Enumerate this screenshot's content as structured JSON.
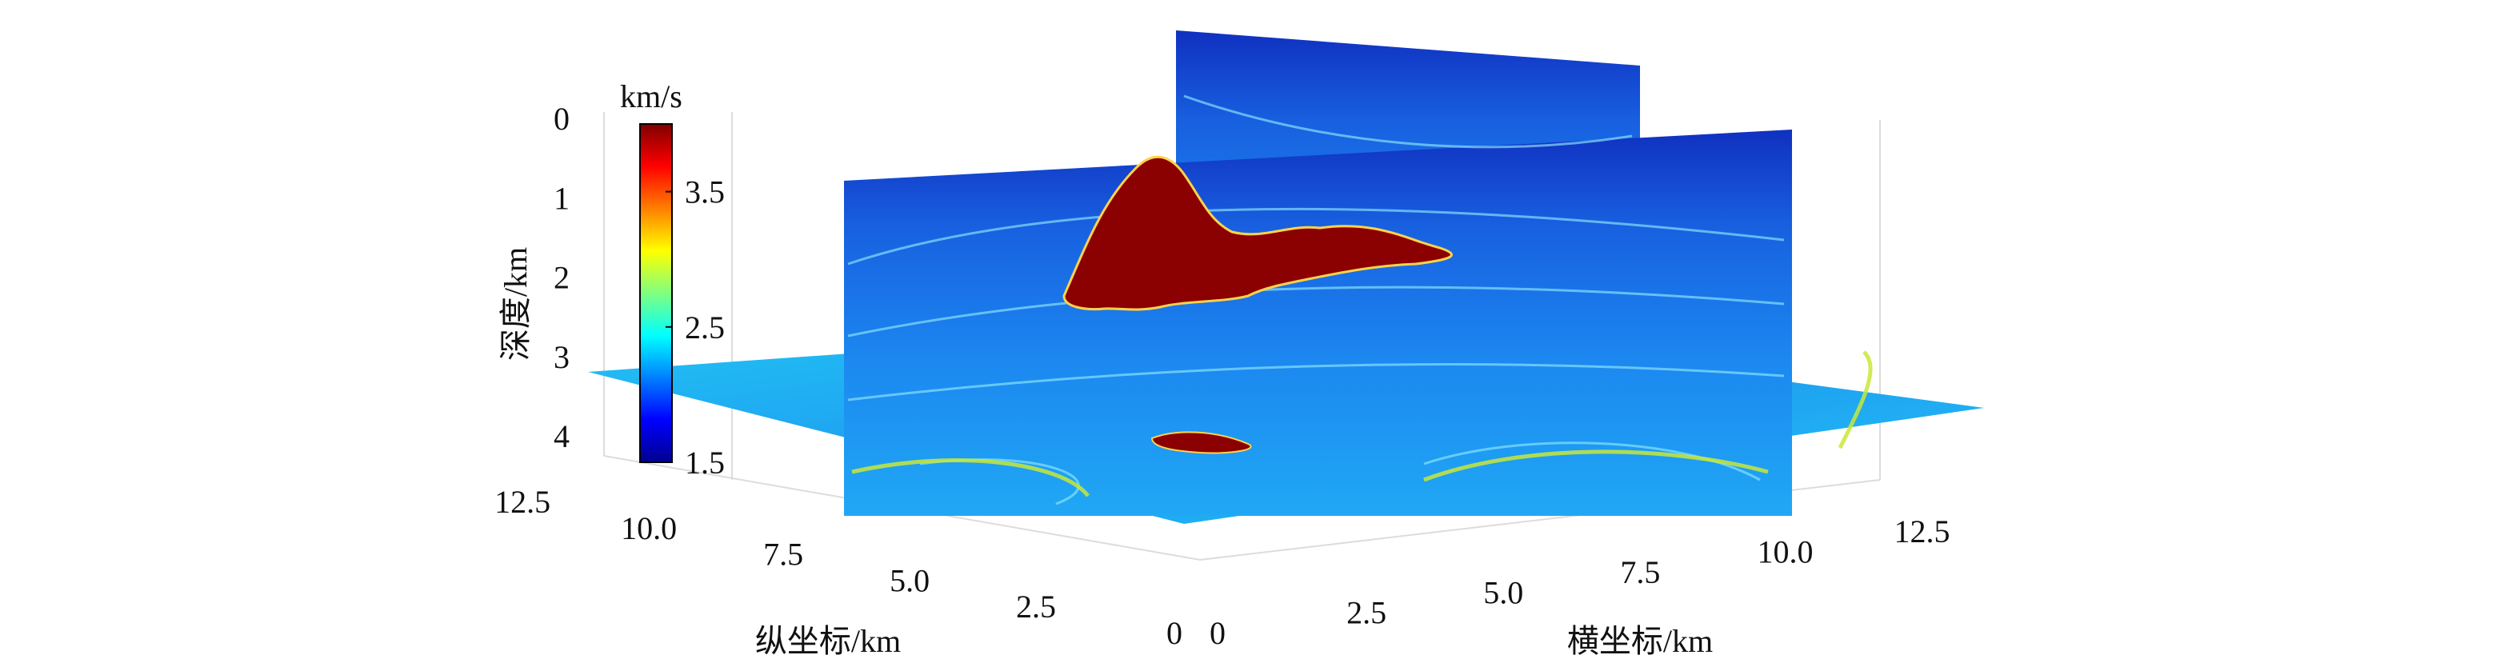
{
  "chart_data": {
    "type": "heatmap",
    "subtype": "3d-velocity-model-slices",
    "title": "",
    "colorbar": {
      "unit_label": "km/s",
      "range": [
        1.5,
        4.0
      ],
      "ticks": [
        {
          "value": 1.5,
          "label": "1.5"
        },
        {
          "value": 2.5,
          "label": "2.5"
        },
        {
          "value": 3.5,
          "label": "3.5"
        }
      ],
      "colormap": "jet"
    },
    "axes": {
      "depth": {
        "label": "深度/km",
        "range": [
          0,
          4
        ],
        "ticks": [
          {
            "value": 0,
            "label": "0"
          },
          {
            "value": 1,
            "label": "1"
          },
          {
            "value": 2,
            "label": "2"
          },
          {
            "value": 3,
            "label": "3"
          },
          {
            "value": 4,
            "label": "4"
          }
        ]
      },
      "longitudinal": {
        "label": "纵坐标/km",
        "range": [
          0,
          13.5
        ],
        "ticks": [
          {
            "value": 0,
            "label": "0"
          },
          {
            "value": 2.5,
            "label": "2.5"
          },
          {
            "value": 5.0,
            "label": "5.0"
          },
          {
            "value": 7.5,
            "label": "7.5"
          },
          {
            "value": 10.0,
            "label": "10.0"
          },
          {
            "value": 12.5,
            "label": "12.5"
          }
        ]
      },
      "transverse": {
        "label": "横坐标/km",
        "range": [
          0,
          13.5
        ],
        "ticks": [
          {
            "value": 0,
            "label": "0"
          },
          {
            "value": 2.5,
            "label": "2.5"
          },
          {
            "value": 5.0,
            "label": "5.0"
          },
          {
            "value": 7.5,
            "label": "7.5"
          },
          {
            "value": 10.0,
            "label": "10.0"
          },
          {
            "value": 12.5,
            "label": "12.5"
          }
        ]
      }
    },
    "slices": [
      {
        "orientation": "horizontal",
        "depth_km": 3.2,
        "dominant_velocity_km_s": 2.6
      },
      {
        "orientation": "vertical-transverse",
        "dominant_velocity_km_s": 2.2
      },
      {
        "orientation": "vertical-longitudinal",
        "dominant_velocity_km_s": 2.2
      }
    ],
    "bodies": [
      {
        "description_velocity_km_s": 4.0
      },
      {
        "description_velocity_km_s": 4.0
      }
    ]
  }
}
